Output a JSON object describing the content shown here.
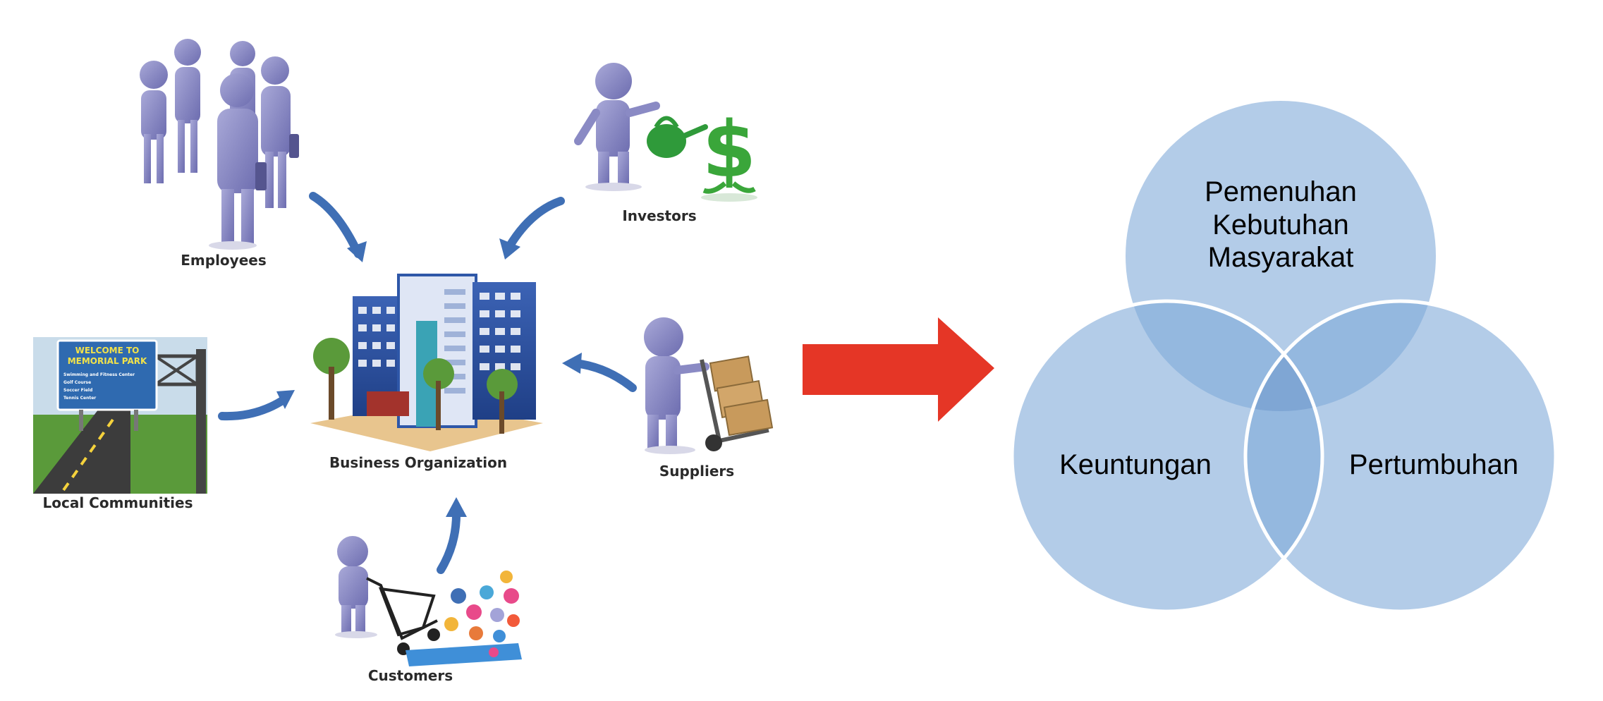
{
  "stakeholders": {
    "employees": "Employees",
    "investors": "Investors",
    "business_organization": "Business Organization",
    "suppliers": "Suppliers",
    "local_communities": "Local Communities",
    "customers": "Customers"
  },
  "sign": {
    "title_line1": "WELCOME TO",
    "title_line2": "MEMORIAL PARK",
    "items": [
      "Swimming and Fitness Center",
      "Golf Course",
      "Soccer Field",
      "Tennis Center"
    ]
  },
  "venn": {
    "top_line1": "Pemenuhan",
    "top_line2": "Kebutuhan",
    "top_line3": "Masyarakat",
    "left": "Keuntungan",
    "right": "Pertumbuhan"
  },
  "colors": {
    "figure": "#8a8ac4",
    "arrow_blue": "#3f6fb5",
    "big_arrow": "#e53626",
    "venn_fill": "#b3cce8",
    "venn_overlap": "#8bb0da",
    "dollar": "#3aa63a",
    "building": "#2e57a8"
  }
}
